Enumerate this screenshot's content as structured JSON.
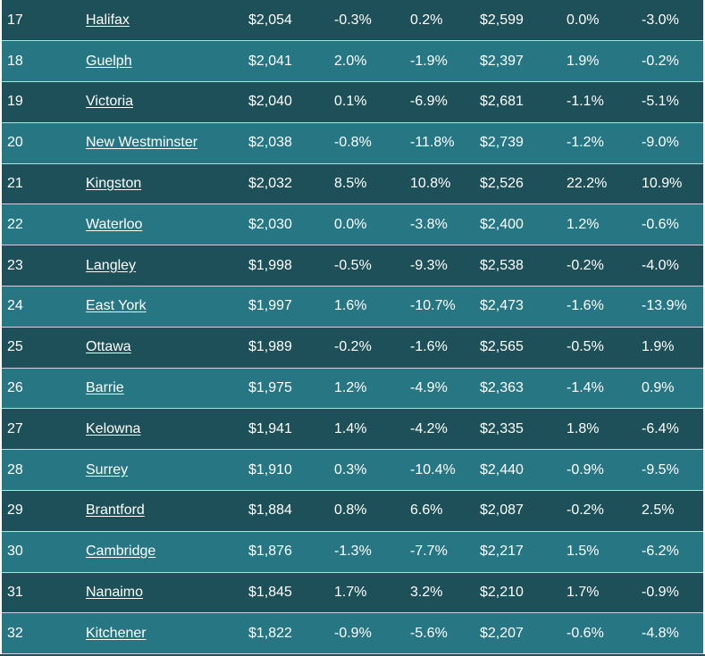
{
  "rows": [
    {
      "rank": "17",
      "city": "Halifax",
      "price1": "$2,054",
      "mom1": "-0.3%",
      "yoy1": "0.2%",
      "price2": "$2,599",
      "mom2": "0.0%",
      "yoy2": "-3.0%"
    },
    {
      "rank": "18",
      "city": "Guelph",
      "price1": "$2,041",
      "mom1": "2.0%",
      "yoy1": "-1.9%",
      "price2": "$2,397",
      "mom2": "1.9%",
      "yoy2": "-0.2%"
    },
    {
      "rank": "19",
      "city": "Victoria",
      "price1": "$2,040",
      "mom1": "0.1%",
      "yoy1": "-6.9%",
      "price2": "$2,681",
      "mom2": "-1.1%",
      "yoy2": "-5.1%"
    },
    {
      "rank": "20",
      "city": "New Westminster",
      "price1": "$2,038",
      "mom1": "-0.8%",
      "yoy1": "-11.8%",
      "price2": "$2,739",
      "mom2": "-1.2%",
      "yoy2": "-9.0%"
    },
    {
      "rank": "21",
      "city": "Kingston",
      "price1": "$2,032",
      "mom1": "8.5%",
      "yoy1": "10.8%",
      "price2": "$2,526",
      "mom2": "22.2%",
      "yoy2": "10.9%"
    },
    {
      "rank": "22",
      "city": "Waterloo",
      "price1": "$2,030",
      "mom1": "0.0%",
      "yoy1": "-3.8%",
      "price2": "$2,400",
      "mom2": "1.2%",
      "yoy2": "-0.6%"
    },
    {
      "rank": "23",
      "city": "Langley",
      "price1": "$1,998",
      "mom1": "-0.5%",
      "yoy1": "-9.3%",
      "price2": "$2,538",
      "mom2": "-0.2%",
      "yoy2": "-4.0%"
    },
    {
      "rank": "24",
      "city": "East York",
      "price1": "$1,997",
      "mom1": "1.6%",
      "yoy1": "-10.7%",
      "price2": "$2,473",
      "mom2": "-1.6%",
      "yoy2": "-13.9%"
    },
    {
      "rank": "25",
      "city": "Ottawa",
      "price1": "$1,989",
      "mom1": "-0.2%",
      "yoy1": "-1.6%",
      "price2": "$2,565",
      "mom2": "-0.5%",
      "yoy2": "1.9%"
    },
    {
      "rank": "26",
      "city": "Barrie",
      "price1": "$1,975",
      "mom1": "1.2%",
      "yoy1": "-4.9%",
      "price2": "$2,363",
      "mom2": "-1.4%",
      "yoy2": "0.9%"
    },
    {
      "rank": "27",
      "city": "Kelowna",
      "price1": "$1,941",
      "mom1": "1.4%",
      "yoy1": "-4.2%",
      "price2": "$2,335",
      "mom2": "1.8%",
      "yoy2": "-6.4%"
    },
    {
      "rank": "28",
      "city": "Surrey",
      "price1": "$1,910",
      "mom1": "0.3%",
      "yoy1": "-10.4%",
      "price2": "$2,440",
      "mom2": "-0.9%",
      "yoy2": "-9.5%"
    },
    {
      "rank": "29",
      "city": "Brantford",
      "price1": "$1,884",
      "mom1": "0.8%",
      "yoy1": "6.6%",
      "price2": "$2,087",
      "mom2": "-0.2%",
      "yoy2": "2.5%"
    },
    {
      "rank": "30",
      "city": "Cambridge",
      "price1": "$1,876",
      "mom1": "-1.3%",
      "yoy1": "-7.7%",
      "price2": "$2,217",
      "mom2": "1.5%",
      "yoy2": "-6.2%"
    },
    {
      "rank": "31",
      "city": "Nanaimo",
      "price1": "$1,845",
      "mom1": "1.7%",
      "yoy1": "3.2%",
      "price2": "$2,210",
      "mom2": "1.7%",
      "yoy2": "-0.9%"
    },
    {
      "rank": "32",
      "city": "Kitchener",
      "price1": "$1,822",
      "mom1": "-0.9%",
      "yoy1": "-5.6%",
      "price2": "$2,207",
      "mom2": "-0.6%",
      "yoy2": "-4.8%"
    }
  ],
  "colors": {
    "row_dark": "#1d5058",
    "row_light": "#277684",
    "text": "#ffffff"
  }
}
